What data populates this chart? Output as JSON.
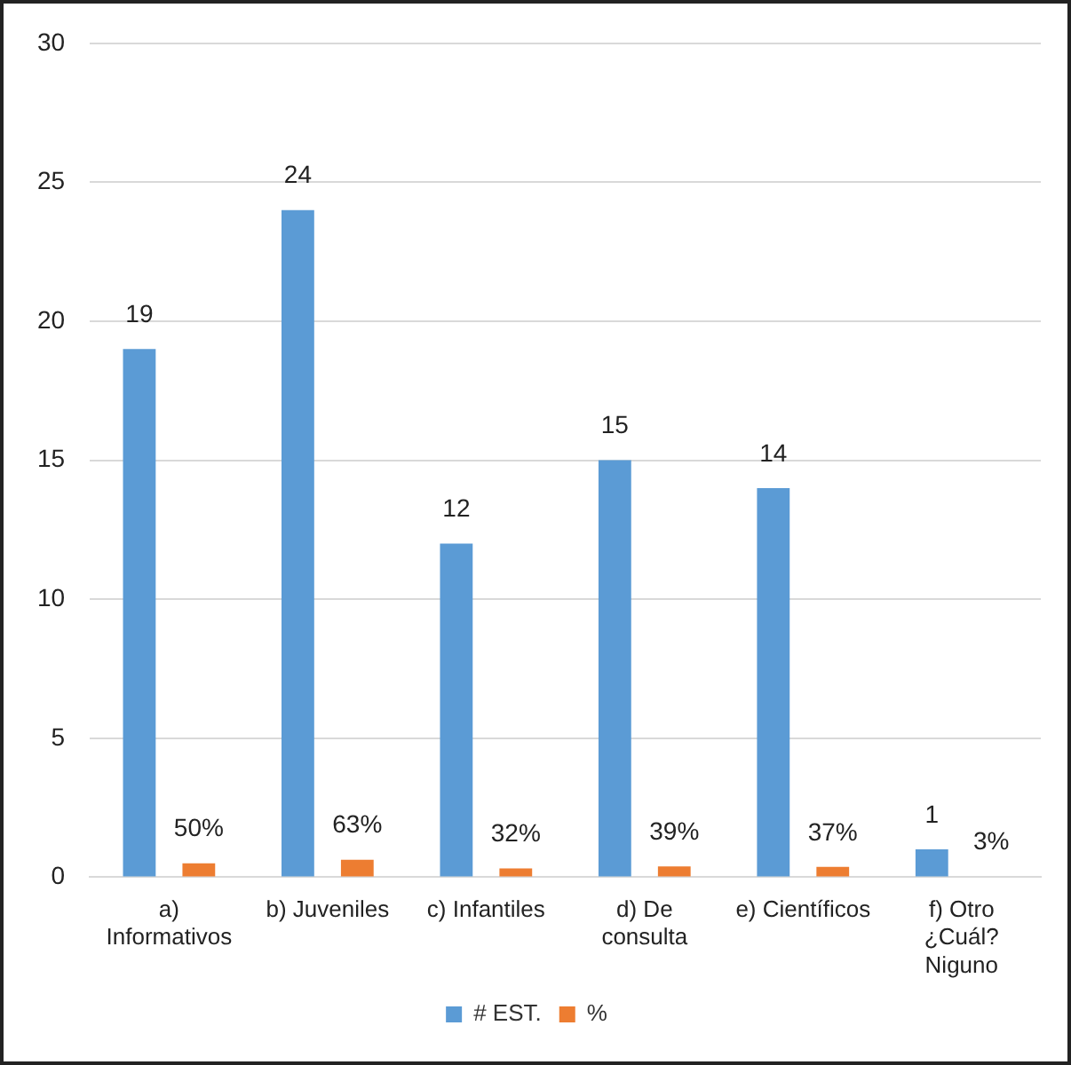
{
  "chart_data": {
    "type": "bar",
    "categories": [
      "a) Informativos",
      "b) Juveniles",
      "c) Infantiles",
      "d) De consulta",
      "e) Científicos",
      "f) Otro ¿Cuál? Niguno"
    ],
    "series": [
      {
        "name": "# EST.",
        "color": "#5b9bd5",
        "values": [
          19,
          24,
          12,
          15,
          14,
          1
        ],
        "value_labels": [
          "19",
          "24",
          "12",
          "15",
          "14",
          "1"
        ]
      },
      {
        "name": "%",
        "color": "#ed7d31",
        "values": [
          0.5,
          0.63,
          0.32,
          0.39,
          0.37,
          0.03
        ],
        "value_labels": [
          "50%",
          "63%",
          "32%",
          "39%",
          "37%",
          "3%"
        ]
      }
    ],
    "ylim": [
      0,
      30
    ],
    "yticks": [
      0,
      5,
      10,
      15,
      20,
      25,
      30
    ],
    "grid": "y",
    "legend": "bottom"
  }
}
